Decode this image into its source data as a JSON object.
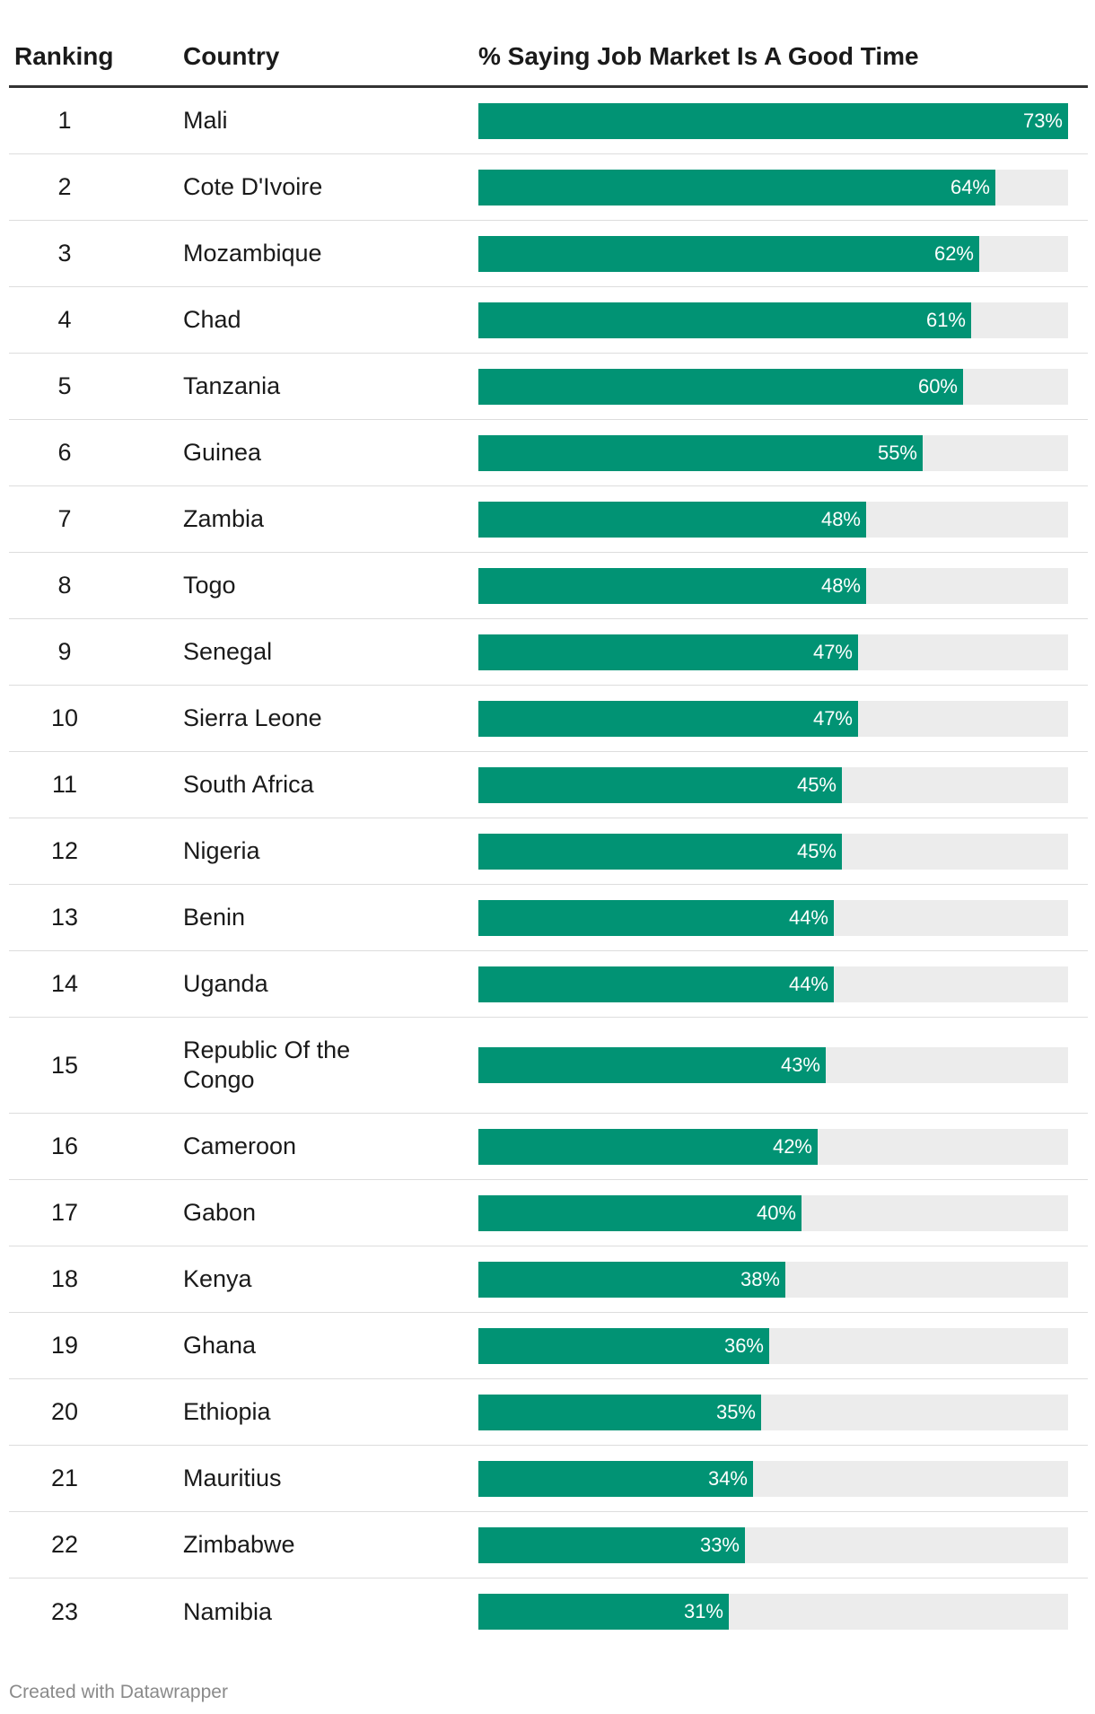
{
  "chart_data": {
    "type": "table",
    "columns": [
      "Ranking",
      "Country",
      "% Saying Job Market Is A Good Time"
    ],
    "value_max": 73,
    "rows": [
      {
        "rank": "1",
        "country": "Mali",
        "value": 73,
        "label": "73%"
      },
      {
        "rank": "2",
        "country": "Cote D'Ivoire",
        "value": 64,
        "label": "64%"
      },
      {
        "rank": "3",
        "country": "Mozambique",
        "value": 62,
        "label": "62%"
      },
      {
        "rank": "4",
        "country": "Chad",
        "value": 61,
        "label": "61%"
      },
      {
        "rank": "5",
        "country": "Tanzania",
        "value": 60,
        "label": "60%"
      },
      {
        "rank": "6",
        "country": "Guinea",
        "value": 55,
        "label": "55%"
      },
      {
        "rank": "7",
        "country": "Zambia",
        "value": 48,
        "label": "48%"
      },
      {
        "rank": "8",
        "country": "Togo",
        "value": 48,
        "label": "48%"
      },
      {
        "rank": "9",
        "country": "Senegal",
        "value": 47,
        "label": "47%"
      },
      {
        "rank": "10",
        "country": "Sierra Leone",
        "value": 47,
        "label": "47%"
      },
      {
        "rank": "11",
        "country": "South Africa",
        "value": 45,
        "label": "45%"
      },
      {
        "rank": "12",
        "country": "Nigeria",
        "value": 45,
        "label": "45%"
      },
      {
        "rank": "13",
        "country": "Benin",
        "value": 44,
        "label": "44%"
      },
      {
        "rank": "14",
        "country": "Uganda",
        "value": 44,
        "label": "44%"
      },
      {
        "rank": "15",
        "country": "Republic Of the Congo",
        "value": 43,
        "label": "43%"
      },
      {
        "rank": "16",
        "country": "Cameroon",
        "value": 42,
        "label": "42%"
      },
      {
        "rank": "17",
        "country": "Gabon",
        "value": 40,
        "label": "40%"
      },
      {
        "rank": "18",
        "country": "Kenya",
        "value": 38,
        "label": "38%"
      },
      {
        "rank": "19",
        "country": "Ghana",
        "value": 36,
        "label": "36%"
      },
      {
        "rank": "20",
        "country": "Ethiopia",
        "value": 35,
        "label": "35%"
      },
      {
        "rank": "21",
        "country": "Mauritius",
        "value": 34,
        "label": "34%"
      },
      {
        "rank": "22",
        "country": "Zimbabwe",
        "value": 33,
        "label": "33%"
      },
      {
        "rank": "23",
        "country": "Namibia",
        "value": 31,
        "label": "31%"
      }
    ]
  },
  "colors": {
    "bar": "#019374",
    "track": "#ececec"
  },
  "footer": {
    "credit": "Created with Datawrapper"
  }
}
